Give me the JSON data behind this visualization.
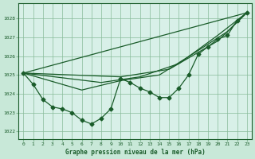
{
  "bg_color": "#c8e8d8",
  "plot_bg_color": "#d8f0e8",
  "grid_color": "#88bb99",
  "line_color": "#1a5c2a",
  "text_color": "#1a5c2a",
  "xlabel": "Graphe pression niveau de la mer (hPa)",
  "xlim": [
    -0.5,
    23.5
  ],
  "ylim": [
    1021.6,
    1028.8
  ],
  "yticks": [
    1022,
    1023,
    1024,
    1025,
    1026,
    1027,
    1028
  ],
  "xticks": [
    0,
    1,
    2,
    3,
    4,
    5,
    6,
    7,
    8,
    9,
    10,
    11,
    12,
    13,
    14,
    15,
    16,
    17,
    18,
    19,
    20,
    21,
    22,
    23
  ],
  "main_x": [
    0,
    1,
    2,
    3,
    4,
    5,
    6,
    7,
    8,
    9,
    10,
    11,
    12,
    13,
    14,
    15,
    16,
    17,
    18,
    19,
    20,
    21,
    22,
    23
  ],
  "main_y": [
    1025.1,
    1024.5,
    1023.7,
    1023.3,
    1023.2,
    1023.0,
    1022.6,
    1022.4,
    1022.7,
    1023.2,
    1024.8,
    1024.6,
    1024.3,
    1024.1,
    1023.8,
    1023.8,
    1024.3,
    1025.0,
    1026.1,
    1026.5,
    1026.9,
    1027.1,
    1027.9,
    1028.3
  ],
  "trend1_x": [
    0,
    23
  ],
  "trend1_y": [
    1025.1,
    1028.3
  ],
  "trend2_x": [
    0,
    10,
    15,
    20,
    23
  ],
  "trend2_y": [
    1025.1,
    1024.9,
    1025.3,
    1026.8,
    1028.3
  ],
  "trend3_x": [
    0,
    8,
    12,
    16,
    20,
    23
  ],
  "trend3_y": [
    1025.1,
    1024.6,
    1024.9,
    1025.6,
    1027.1,
    1028.3
  ],
  "trend4_x": [
    0,
    6,
    10,
    14,
    18,
    21,
    23
  ],
  "trend4_y": [
    1025.1,
    1024.2,
    1024.7,
    1025.0,
    1026.3,
    1027.3,
    1028.3
  ],
  "marker_size": 2.5,
  "line_width": 0.9,
  "tick_fontsize": 4.5,
  "xlabel_fontsize": 5.5
}
